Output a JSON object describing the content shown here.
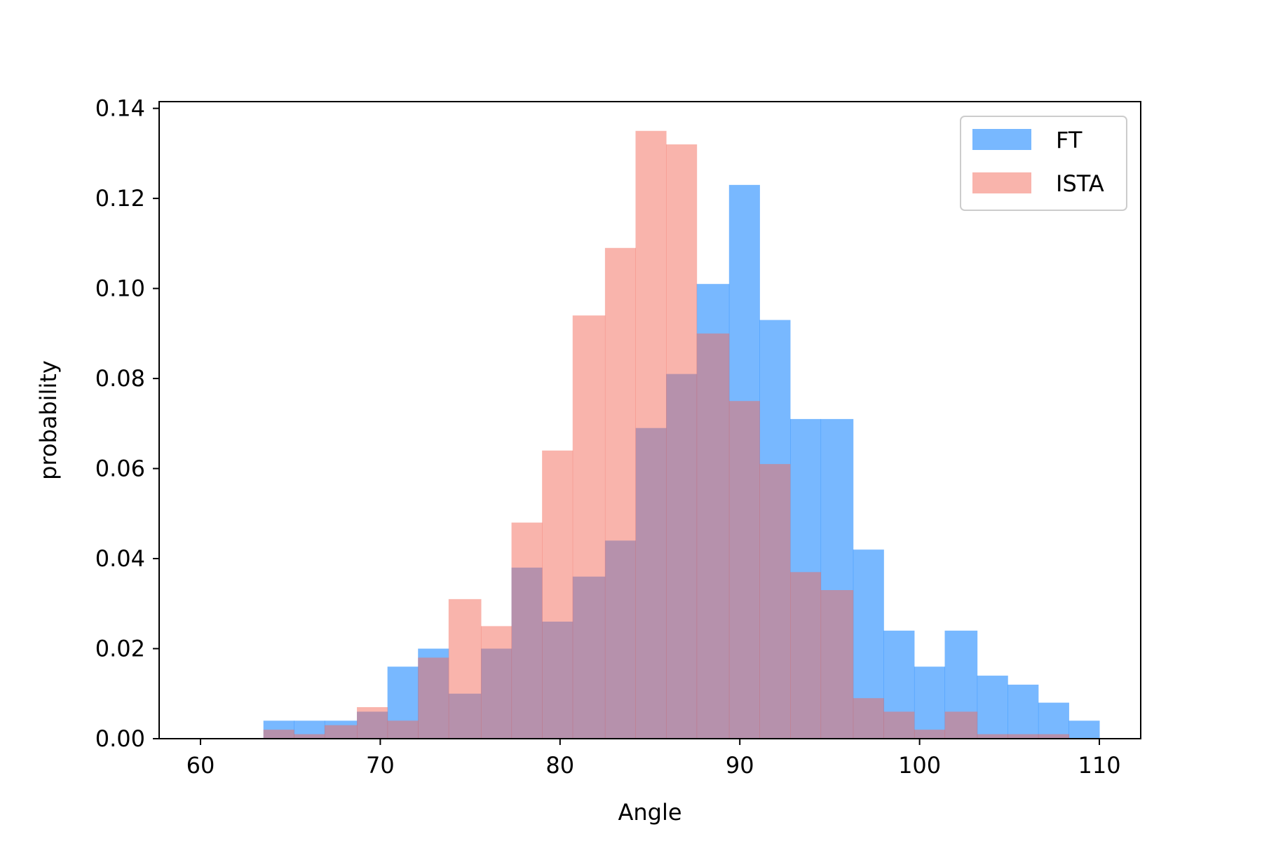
{
  "chart_data": {
    "type": "bar",
    "xlabel": "Angle",
    "ylabel": "probability",
    "xlim": [
      57.7,
      112.3
    ],
    "ylim": [
      0,
      0.1415
    ],
    "xticks": [
      60,
      70,
      80,
      90,
      100,
      110
    ],
    "xtick_labels": [
      "60",
      "70",
      "80",
      "90",
      "100",
      "110"
    ],
    "yticks": [
      0,
      0.02,
      0.04,
      0.06,
      0.08,
      0.1,
      0.12,
      0.14
    ],
    "ytick_labels": [
      "0.00",
      "0.02",
      "0.04",
      "0.06",
      "0.08",
      "0.10",
      "0.12",
      "0.14"
    ],
    "legend_position": "top-right",
    "grid": false,
    "series": [
      {
        "name": "FT",
        "color": "#1e88ff",
        "alpha": 0.6,
        "bins": [
          [
            63.5,
            65.2,
            0.004
          ],
          [
            65.2,
            66.9,
            0.004
          ],
          [
            66.9,
            68.7,
            0.004
          ],
          [
            68.7,
            70.4,
            0.006
          ],
          [
            70.4,
            72.1,
            0.016
          ],
          [
            72.1,
            73.8,
            0.02
          ],
          [
            73.8,
            75.6,
            0.01
          ],
          [
            75.6,
            77.3,
            0.02
          ],
          [
            77.3,
            79.0,
            0.038
          ],
          [
            79.0,
            80.7,
            0.026
          ],
          [
            80.7,
            82.5,
            0.036
          ],
          [
            82.5,
            84.2,
            0.044
          ],
          [
            84.2,
            85.9,
            0.069
          ],
          [
            85.9,
            87.6,
            0.081
          ],
          [
            87.6,
            89.4,
            0.101
          ],
          [
            89.4,
            91.1,
            0.123
          ],
          [
            91.1,
            92.8,
            0.093
          ],
          [
            92.8,
            94.5,
            0.071
          ],
          [
            94.5,
            96.3,
            0.071
          ],
          [
            96.3,
            98.0,
            0.042
          ],
          [
            98.0,
            99.7,
            0.024
          ],
          [
            99.7,
            101.4,
            0.016
          ],
          [
            101.4,
            103.2,
            0.024
          ],
          [
            103.2,
            104.9,
            0.014
          ],
          [
            104.9,
            106.6,
            0.012
          ],
          [
            106.6,
            108.3,
            0.008
          ],
          [
            108.3,
            110.0,
            0.004
          ]
        ]
      },
      {
        "name": "ISTA",
        "color": "#f4695a",
        "alpha": 0.5,
        "bins": [
          [
            63.5,
            65.2,
            0.002
          ],
          [
            65.2,
            66.9,
            0.001
          ],
          [
            66.9,
            68.7,
            0.003
          ],
          [
            68.7,
            70.4,
            0.007
          ],
          [
            70.4,
            72.1,
            0.004
          ],
          [
            72.1,
            73.8,
            0.018
          ],
          [
            73.8,
            75.6,
            0.031
          ],
          [
            75.6,
            77.3,
            0.025
          ],
          [
            77.3,
            79.0,
            0.048
          ],
          [
            79.0,
            80.7,
            0.064
          ],
          [
            80.7,
            82.5,
            0.094
          ],
          [
            82.5,
            84.2,
            0.109
          ],
          [
            84.2,
            85.9,
            0.135
          ],
          [
            85.9,
            87.6,
            0.132
          ],
          [
            87.6,
            89.4,
            0.09
          ],
          [
            89.4,
            91.1,
            0.075
          ],
          [
            91.1,
            92.8,
            0.061
          ],
          [
            92.8,
            94.5,
            0.037
          ],
          [
            94.5,
            96.3,
            0.033
          ],
          [
            96.3,
            98.0,
            0.009
          ],
          [
            98.0,
            99.7,
            0.006
          ],
          [
            99.7,
            101.4,
            0.002
          ],
          [
            101.4,
            103.2,
            0.006
          ],
          [
            103.2,
            104.9,
            0.001
          ],
          [
            104.9,
            106.6,
            0.001
          ],
          [
            106.6,
            108.3,
            0.001
          ]
        ]
      }
    ]
  }
}
